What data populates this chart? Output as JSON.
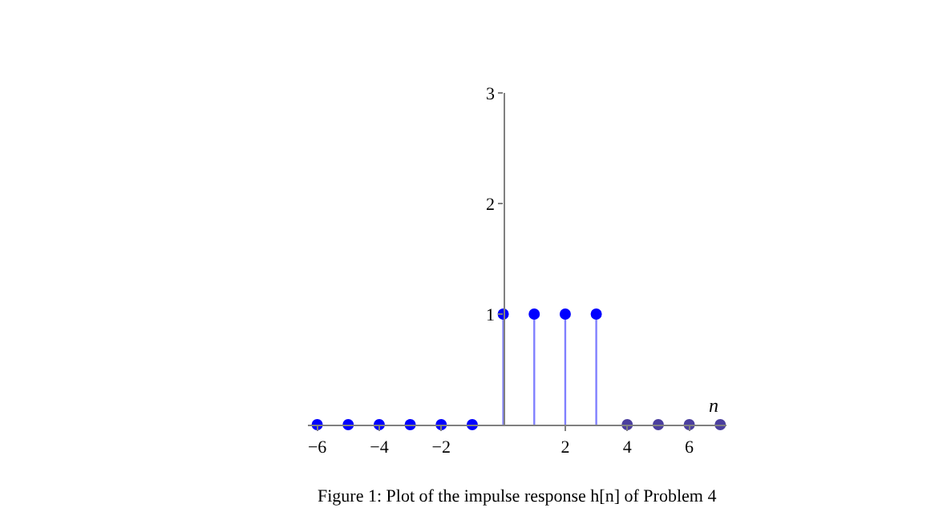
{
  "chart_data": {
    "type": "lollipop",
    "x": [
      -6,
      -5,
      -4,
      -3,
      -2,
      -1,
      0,
      1,
      2,
      3,
      4,
      5,
      6,
      7
    ],
    "values": [
      0,
      0,
      0,
      0,
      0,
      0,
      1,
      1,
      1,
      1,
      0,
      0,
      0,
      0
    ],
    "colors": [
      "#0000ff",
      "#0000ff",
      "#0000ff",
      "#0000ff",
      "#0000ff",
      "#0000ff",
      "#0000ff",
      "#0000ff",
      "#0000ff",
      "#0000ff",
      "#4b3f9e",
      "#4b3f9e",
      "#4b3f9e",
      "#4b3f9e"
    ],
    "color": "#8080ff",
    "xlabel": "n",
    "xlim": [
      -6.3,
      7.2
    ],
    "ylim": [
      0,
      3
    ],
    "xticks": [
      -6,
      -4,
      -2,
      2,
      4,
      6
    ],
    "yticks": [
      1,
      2,
      3
    ],
    "marker": "circle",
    "annotations": [
      "Figure 1: Plot of the impulse response h[n] of Problem 4"
    ]
  }
}
